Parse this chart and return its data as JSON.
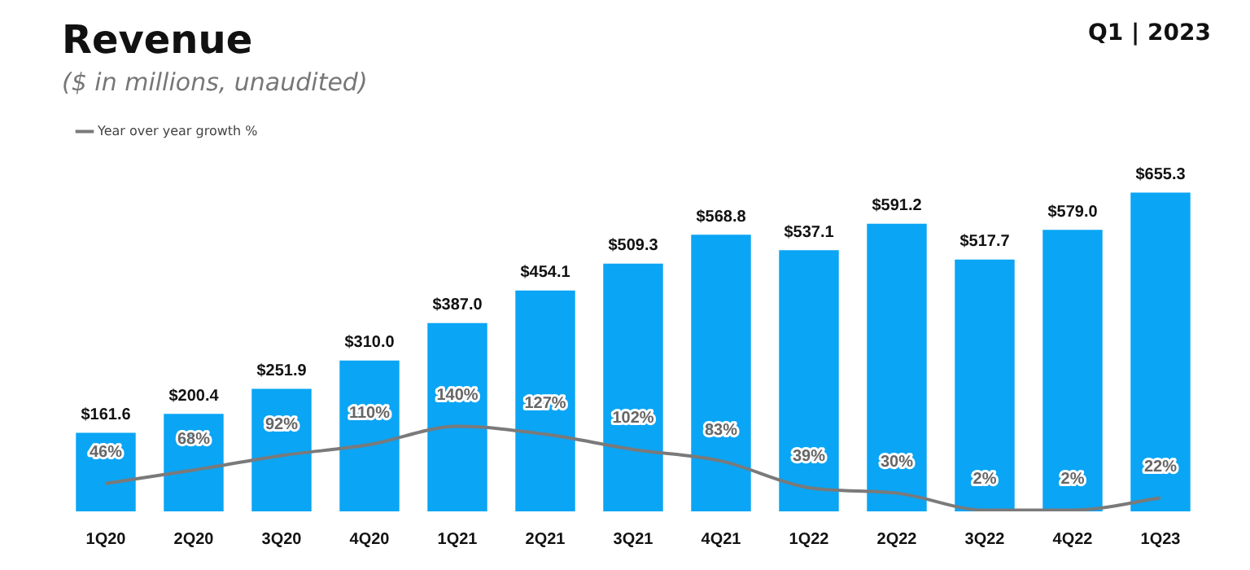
{
  "chart_data": {
    "type": "bar",
    "title": "Revenue",
    "subtitle": "($ in millions, unaudited)",
    "annotations": [
      "Q1 | 2023"
    ],
    "categories": [
      "1Q20",
      "2Q20",
      "3Q20",
      "4Q20",
      "1Q21",
      "2Q21",
      "3Q21",
      "4Q21",
      "1Q22",
      "2Q22",
      "3Q22",
      "4Q22",
      "1Q23"
    ],
    "series": [
      {
        "color": "#0aa5f5",
        "values": [
          161.6,
          200.4,
          251.9,
          310.0,
          387.0,
          454.1,
          509.3,
          568.8,
          537.1,
          591.2,
          517.7,
          579.0,
          655.3
        ],
        "value_labels": [
          "$161.6",
          "$200.4",
          "$251.9",
          "$310.0",
          "$387.0",
          "$454.1",
          "$509.3",
          "$568.8",
          "$537.1",
          "$591.2",
          "$517.7",
          "$579.0",
          "$655.3"
        ]
      },
      {
        "type": "line",
        "name": "Year over year growth %",
        "axis": "y2",
        "color": "#7a7a7a",
        "values": [
          46,
          68,
          92,
          110,
          140,
          127,
          102,
          83,
          39,
          30,
          2,
          2,
          22
        ],
        "value_labels": [
          "46%",
          "68%",
          "92%",
          "110%",
          "140%",
          "127%",
          "102%",
          "83%",
          "39%",
          "30%",
          "2%",
          "2%",
          "22%"
        ]
      }
    ],
    "legend": "top left",
    "tick_labels": "x",
    "grid": false,
    "marker": "none"
  }
}
